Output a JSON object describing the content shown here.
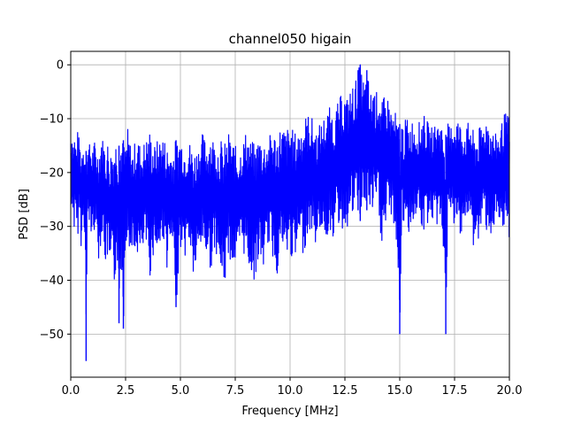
{
  "chart_data": {
    "type": "line",
    "title": "channel050 higain",
    "xlabel": "Frequency [MHz]",
    "ylabel": "PSD [dB]",
    "xlim": [
      0.0,
      20.0
    ],
    "ylim": [
      -58,
      2.5
    ],
    "xticks": [
      0.0,
      2.5,
      5.0,
      7.5,
      10.0,
      12.5,
      15.0,
      17.5,
      20.0
    ],
    "xtick_labels": [
      "0.0",
      "2.5",
      "5.0",
      "7.5",
      "10.0",
      "12.5",
      "15.0",
      "17.5",
      "20.0"
    ],
    "yticks": [
      0,
      -10,
      -20,
      -30,
      -40,
      -50
    ],
    "ytick_labels": [
      "0",
      "−10",
      "−20",
      "−30",
      "−40",
      "−50"
    ],
    "grid": true,
    "legend": "none",
    "series": [
      {
        "color": "#0000ff",
        "x": [
          0.0,
          0.05,
          0.1,
          0.15,
          0.2,
          0.25,
          0.3,
          0.35,
          0.4,
          0.45,
          0.5,
          0.55,
          0.6,
          0.65,
          0.7,
          0.75,
          0.8,
          0.85,
          0.9,
          0.95,
          1.0,
          1.1,
          1.2,
          1.3,
          1.4,
          1.5,
          1.6,
          1.7,
          1.8,
          1.9,
          2.0,
          2.1,
          2.2,
          2.3,
          2.4,
          2.5,
          2.6,
          2.7,
          2.8,
          2.9,
          3.0,
          3.2,
          3.4,
          3.6,
          3.8,
          4.0,
          4.2,
          4.4,
          4.6,
          4.8,
          5.0,
          5.2,
          5.4,
          5.6,
          5.8,
          6.0,
          6.2,
          6.4,
          6.6,
          6.8,
          7.0,
          7.2,
          7.4,
          7.6,
          7.8,
          8.0,
          8.2,
          8.4,
          8.6,
          8.8,
          9.0,
          9.2,
          9.4,
          9.6,
          9.8,
          10.0,
          10.2,
          10.4,
          10.6,
          10.8,
          11.0,
          11.2,
          11.4,
          11.6,
          11.8,
          12.0,
          12.2,
          12.4,
          12.6,
          12.8,
          13.0,
          13.1,
          13.2,
          13.3,
          13.4,
          13.5,
          13.6,
          13.7,
          13.8,
          13.9,
          14.0,
          14.2,
          14.4,
          14.6,
          14.8,
          15.0,
          15.1,
          15.2,
          15.3,
          15.4,
          15.6,
          15.8,
          16.0,
          16.2,
          16.4,
          16.6,
          16.8,
          17.0,
          17.1,
          17.2,
          17.3,
          17.4,
          17.6,
          17.8,
          18.0,
          18.2,
          18.4,
          18.6,
          18.8,
          19.0,
          19.2,
          19.4,
          19.6,
          19.8,
          20.0
        ],
        "y_upper": [
          -12,
          -11,
          -14,
          -12,
          -13,
          -15,
          -12,
          -14,
          -13,
          -16,
          -15,
          -13,
          -14,
          -15,
          -16,
          -14,
          -13,
          -15,
          -14,
          -16,
          -15,
          -14,
          -16,
          -15,
          -13,
          -14,
          -15,
          -14,
          -16,
          -15,
          -13,
          -14,
          -15,
          -13,
          -14,
          -15,
          -12,
          -14,
          -16,
          -15,
          -13,
          -15,
          -14,
          -12,
          -15,
          -14,
          -13,
          -15,
          -16,
          -14,
          -13,
          -15,
          -14,
          -16,
          -15,
          -13,
          -14,
          -12,
          -15,
          -14,
          -15,
          -13,
          -14,
          -16,
          -15,
          -12,
          -14,
          -15,
          -13,
          -14,
          -14,
          -12,
          -13,
          -11,
          -12,
          -11,
          -13,
          -12,
          -10,
          -9,
          -10,
          -12,
          -11,
          -9,
          -8,
          -9,
          -7,
          -5,
          -6,
          -4,
          -3,
          -1,
          0,
          -2,
          -3,
          -1,
          -4,
          -5,
          -3,
          -6,
          -4,
          -7,
          -5,
          -8,
          -9,
          -11,
          -10,
          -12,
          -9,
          -11,
          -10,
          -12,
          -9,
          -10,
          -12,
          -11,
          -10,
          -12,
          -13,
          -11,
          -12,
          -10,
          -9,
          -11,
          -12,
          -10,
          -13,
          -12,
          -11,
          -9,
          -12,
          -13,
          -11,
          -9,
          -10
        ],
        "y_lower": [
          -28,
          -30,
          -27,
          -32,
          -29,
          -31,
          -33,
          -30,
          -28,
          -31,
          -37,
          -29,
          -30,
          -32,
          -55,
          -33,
          -30,
          -31,
          -29,
          -34,
          -32,
          -30,
          -33,
          -37,
          -31,
          -34,
          -38,
          -36,
          -41,
          -39,
          -43,
          -33,
          -48,
          -35,
          -49,
          -32,
          -34,
          -36,
          -33,
          -39,
          -35,
          -37,
          -33,
          -40,
          -34,
          -36,
          -32,
          -38,
          -33,
          -45,
          -34,
          -36,
          -33,
          -40,
          -37,
          -33,
          -36,
          -38,
          -34,
          -39,
          -42,
          -35,
          -38,
          -37,
          -34,
          -36,
          -39,
          -40,
          -36,
          -38,
          -33,
          -36,
          -39,
          -34,
          -37,
          -35,
          -38,
          -33,
          -35,
          -32,
          -31,
          -34,
          -30,
          -33,
          -31,
          -32,
          -30,
          -31,
          -30,
          -29,
          -28,
          -27,
          -29,
          -26,
          -28,
          -27,
          -26,
          -29,
          -27,
          -28,
          -26,
          -35,
          -30,
          -28,
          -31,
          -50,
          -29,
          -32,
          -28,
          -31,
          -30,
          -27,
          -33,
          -30,
          -28,
          -31,
          -29,
          -34,
          -50,
          -28,
          -30,
          -29,
          -32,
          -31,
          -29,
          -30,
          -35,
          -33,
          -29,
          -31,
          -32,
          -30,
          -33,
          -31,
          -32
        ]
      }
    ]
  }
}
